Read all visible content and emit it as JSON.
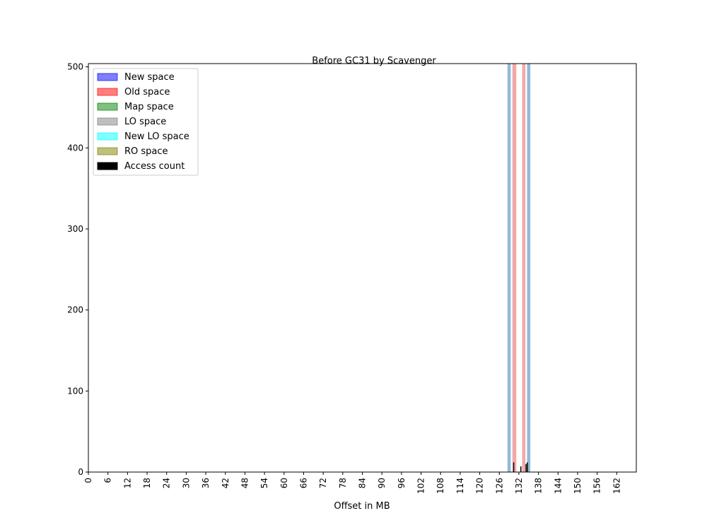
{
  "chart_data": {
    "type": "bar",
    "title": "Before GC31 by Scavenger",
    "xlabel": "Offset in MB",
    "ylabel": "",
    "xlim": [
      0,
      168
    ],
    "ylim": [
      0,
      504
    ],
    "x_ticks": [
      0,
      6,
      12,
      18,
      24,
      30,
      36,
      42,
      48,
      54,
      60,
      66,
      72,
      78,
      84,
      90,
      96,
      102,
      108,
      114,
      120,
      126,
      132,
      138,
      144,
      150,
      156,
      162
    ],
    "y_ticks": [
      0,
      100,
      200,
      300,
      400,
      500
    ],
    "legend_position": "top-left",
    "legend": [
      {
        "label": "New space",
        "color": "#0000ff",
        "alpha": 0.5
      },
      {
        "label": "Old space",
        "color": "#ff0000",
        "alpha": 0.5
      },
      {
        "label": "Map space",
        "color": "#008000",
        "alpha": 0.5
      },
      {
        "label": "LO space",
        "color": "#808080",
        "alpha": 0.5
      },
      {
        "label": "New LO space",
        "color": "#00ffff",
        "alpha": 0.5
      },
      {
        "label": "RO space",
        "color": "#808000",
        "alpha": 0.5
      },
      {
        "label": "Access count",
        "color": "#000000",
        "alpha": 1.0
      }
    ],
    "series": [
      {
        "name": "",
        "color": "#1f77b4",
        "alpha": 0.5,
        "segments": [
          [
            128.5,
            129.5
          ],
          [
            134.5,
            135.5
          ]
        ]
      },
      {
        "name": "",
        "color": "#d62728",
        "alpha": 0.4,
        "segments": [
          [
            130.0,
            131.2
          ],
          [
            133.0,
            134.0
          ]
        ]
      }
    ],
    "access_count": [
      {
        "x": 130.4,
        "value": 12
      },
      {
        "x": 132.6,
        "value": 7
      },
      {
        "x": 134.2,
        "value": 10
      },
      {
        "x": 134.6,
        "value": 12
      }
    ]
  }
}
